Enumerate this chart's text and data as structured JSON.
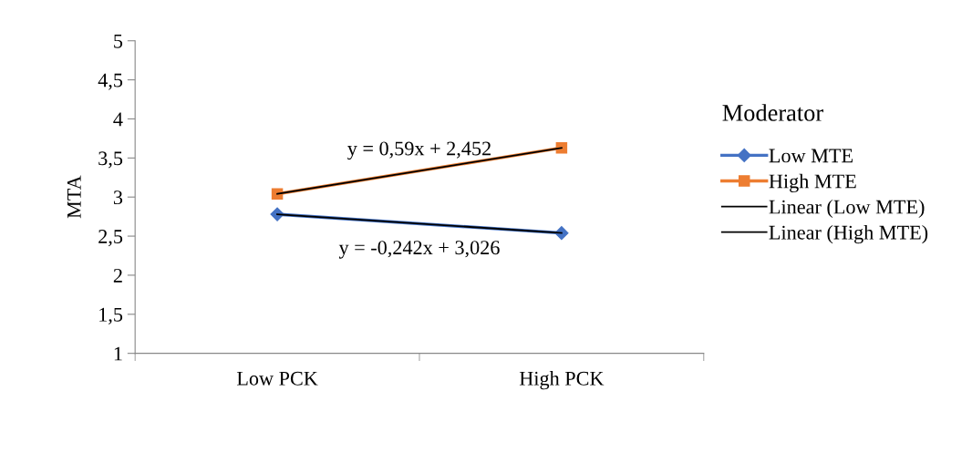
{
  "chart_data": {
    "type": "line",
    "ylabel": "MTA",
    "legend_title": "Moderator",
    "categories": [
      "Low PCK",
      "High PCK"
    ],
    "series": [
      {
        "name": "Low MTE",
        "color": "#4472c4",
        "values": [
          2.78,
          2.54
        ],
        "marker": "diamond"
      },
      {
        "name": "High MTE",
        "color": "#ed7d31",
        "values": [
          3.04,
          3.63
        ],
        "marker": "square"
      },
      {
        "name": "Linear (Low MTE)",
        "color": "#000000",
        "values": [
          2.78,
          2.54
        ],
        "marker": "none"
      },
      {
        "name": "Linear (High MTE)",
        "color": "#000000",
        "values": [
          3.04,
          3.63
        ],
        "marker": "none"
      }
    ],
    "ylim": [
      1,
      5
    ],
    "yticks": [
      1,
      {
        "value": 1.5,
        "label": "1,5"
      },
      2,
      {
        "value": 2.5,
        "label": "2,5"
      },
      3,
      {
        "value": 3.5,
        "label": "3,5"
      },
      4,
      {
        "value": 4.5,
        "label": "4,5"
      },
      5
    ],
    "annotations": [
      "y = 0,59x + 2,452",
      "y = -0,242x + 3,026"
    ],
    "grid": false,
    "legend": "right",
    "line_style": "solid"
  }
}
